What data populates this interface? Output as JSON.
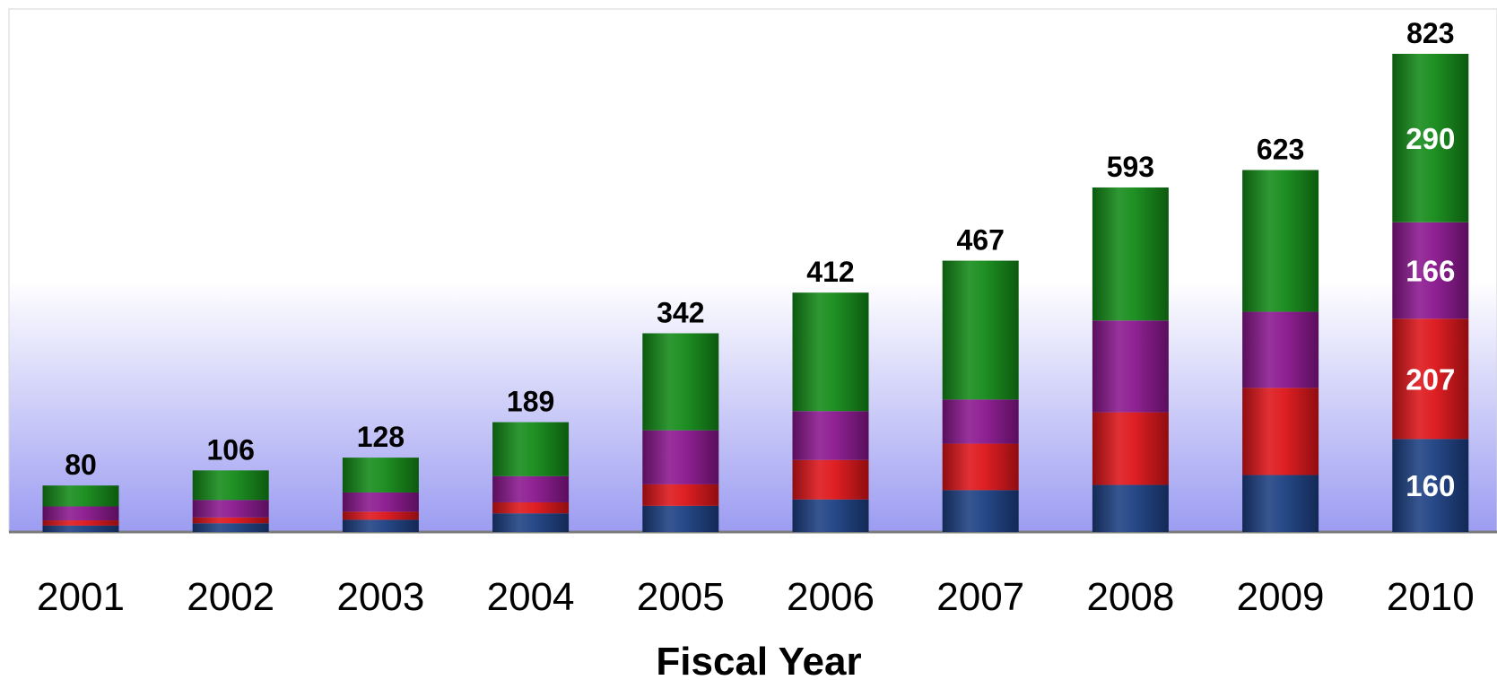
{
  "chart_data": {
    "type": "bar",
    "stacked": true,
    "xlabel": "Fiscal Year",
    "ylabel": "",
    "ylim": [
      0,
      900
    ],
    "grid": false,
    "legend": "none",
    "categories": [
      "2001",
      "2002",
      "2003",
      "2004",
      "2005",
      "2006",
      "2007",
      "2008",
      "2009",
      "2010"
    ],
    "totals": [
      80,
      106,
      128,
      189,
      342,
      412,
      467,
      593,
      623,
      823
    ],
    "series": [
      {
        "values": [
          11,
          15,
          21,
          32,
          45,
          56,
          72,
          81,
          98,
          160
        ],
        "color": "#1c3f82"
      },
      {
        "values": [
          9,
          10,
          14,
          19,
          37,
          68,
          80,
          125,
          150,
          207
        ],
        "color": "#dd1418"
      },
      {
        "values": [
          24,
          30,
          33,
          45,
          93,
          84,
          76,
          158,
          131,
          166
        ],
        "color": "#8a168e"
      },
      {
        "values": [
          36,
          51,
          60,
          93,
          167,
          204,
          239,
          229,
          244,
          290
        ],
        "color": "#138a17"
      }
    ],
    "segment_labels": {
      "category": "2010",
      "values": [
        "160",
        "207",
        "166",
        "290"
      ]
    }
  }
}
